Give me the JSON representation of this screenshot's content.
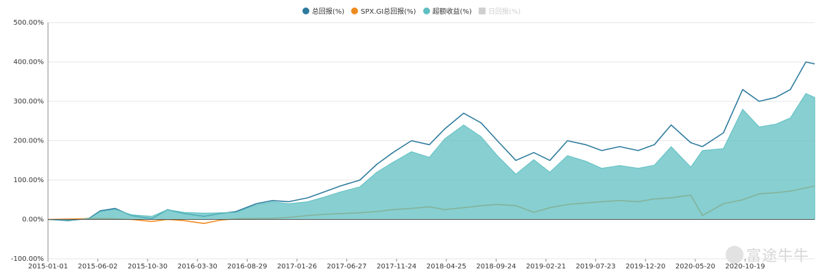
{
  "legend": [
    {
      "label": "总回报(%)",
      "color": "#2c7a9d",
      "enabled": true,
      "shape": "circle"
    },
    {
      "label": "SPX.GI总回报(%)",
      "color": "#ef8a1e",
      "enabled": true,
      "shape": "circle"
    },
    {
      "label": "超额收益(%)",
      "color": "#5fbfc2",
      "enabled": true,
      "shape": "circle"
    },
    {
      "label": "日回报(%)",
      "color": "#cfcfcf",
      "enabled": false,
      "shape": "square"
    }
  ],
  "watermark": "富途牛牛",
  "chart_data": {
    "type": "line",
    "title": "",
    "xlabel": "",
    "ylabel": "",
    "ylim": [
      -100,
      500
    ],
    "y_ticks": [
      "-100.00%",
      "0.00%",
      "100.00%",
      "200.00%",
      "300.00%",
      "400.00%",
      "500.00%"
    ],
    "y_tick_values": [
      -100,
      0,
      100,
      200,
      300,
      400,
      500
    ],
    "x_tick_labels": [
      "2015-01-01",
      "2015-06-02",
      "2015-10-30",
      "2016-03-30",
      "2016-08-29",
      "2017-01-26",
      "2017-06-27",
      "2017-11-24",
      "2018-04-25",
      "2018-09-24",
      "2019-02-21",
      "2019-07-23",
      "2019-12-20",
      "2020-05-20",
      "2020-10-19"
    ],
    "grid": true,
    "legend_position": "top",
    "x": [
      "2015-01-01",
      "2015-03-01",
      "2015-05-01",
      "2015-06-02",
      "2015-07-15",
      "2015-09-01",
      "2015-10-30",
      "2015-12-15",
      "2016-02-01",
      "2016-03-30",
      "2016-05-15",
      "2016-07-01",
      "2016-08-29",
      "2016-10-15",
      "2016-12-01",
      "2017-01-26",
      "2017-03-15",
      "2017-05-01",
      "2017-06-27",
      "2017-08-15",
      "2017-10-01",
      "2017-11-24",
      "2018-01-15",
      "2018-03-01",
      "2018-04-25",
      "2018-06-15",
      "2018-08-01",
      "2018-09-24",
      "2018-11-15",
      "2019-01-01",
      "2019-02-21",
      "2019-04-15",
      "2019-06-01",
      "2019-07-23",
      "2019-09-15",
      "2019-11-01",
      "2019-12-20",
      "2020-02-15",
      "2020-03-20",
      "2020-05-20",
      "2020-07-15",
      "2020-09-01",
      "2020-10-19",
      "2020-12-01",
      "2021-01-15",
      "2021-02-10"
    ],
    "series": [
      {
        "name": "总回报(%)",
        "color": "#2c7a9d",
        "type": "line",
        "values": [
          0,
          -3,
          3,
          22,
          28,
          10,
          2,
          25,
          15,
          8,
          15,
          20,
          40,
          48,
          45,
          55,
          70,
          85,
          100,
          140,
          170,
          200,
          190,
          230,
          270,
          245,
          200,
          150,
          170,
          150,
          200,
          190,
          175,
          185,
          175,
          190,
          240,
          195,
          185,
          220,
          330,
          300,
          310,
          330,
          400,
          395
        ]
      },
      {
        "name": "SPX.GI总回报(%)",
        "color": "#ef8a1e",
        "type": "line",
        "values": [
          0,
          1,
          2,
          3,
          2,
          0,
          -5,
          0,
          -3,
          -10,
          -2,
          2,
          3,
          3,
          5,
          10,
          13,
          15,
          17,
          20,
          25,
          28,
          32,
          25,
          30,
          35,
          38,
          35,
          18,
          30,
          38,
          42,
          45,
          48,
          45,
          52,
          55,
          62,
          10,
          40,
          50,
          65,
          68,
          72,
          80,
          85
        ]
      },
      {
        "name": "超额收益(%)",
        "color": "#5fbfc2",
        "type": "area",
        "values": [
          0,
          -2,
          2,
          20,
          26,
          12,
          8,
          25,
          18,
          16,
          17,
          18,
          37,
          45,
          40,
          45,
          57,
          70,
          83,
          120,
          145,
          172,
          158,
          205,
          240,
          210,
          162,
          115,
          152,
          120,
          162,
          148,
          130,
          137,
          130,
          138,
          185,
          133,
          175,
          180,
          280,
          235,
          242,
          258,
          320,
          310
        ]
      }
    ]
  }
}
